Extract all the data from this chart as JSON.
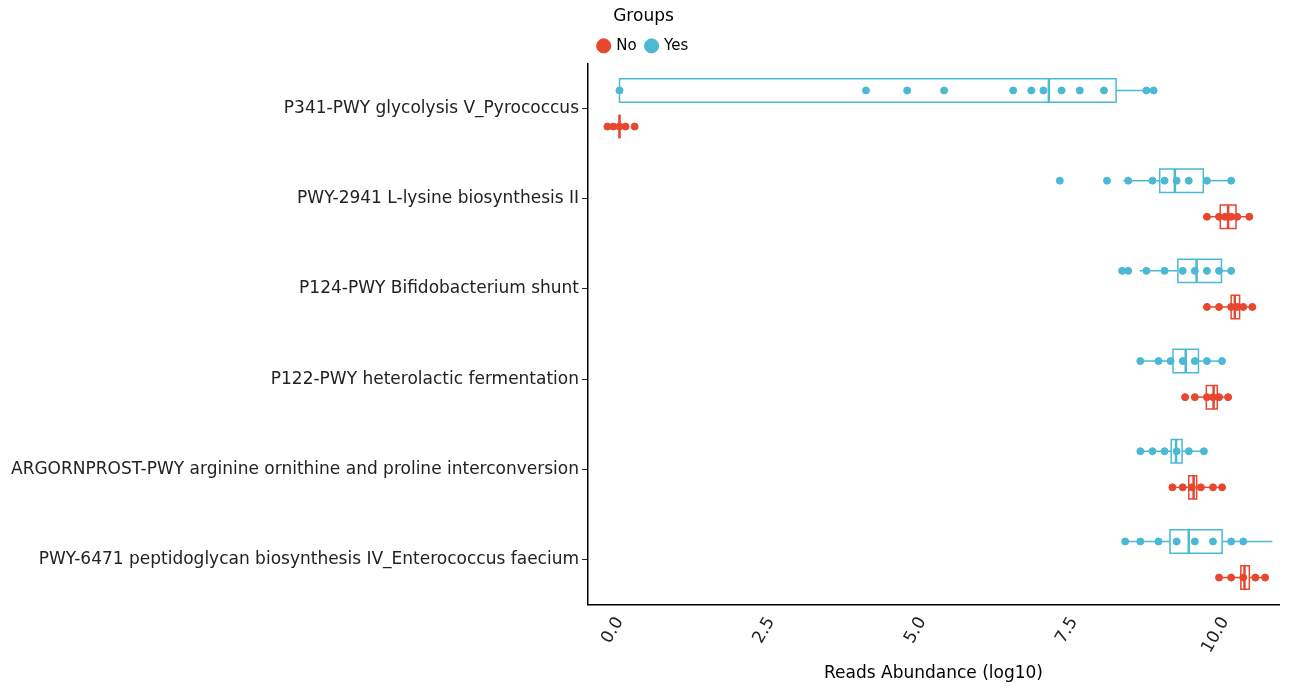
{
  "chart_data": {
    "type": "box",
    "orientation": "horizontal",
    "legend": "top",
    "legend_title": "Groups",
    "xlabel": "Reads Abundance (log10)",
    "marker": "circle",
    "categories": [
      "P341-PWY glycolysis V_Pyrococcus",
      "PWY-2941 L-lysine biosynthesis II",
      "P124-PWY Bifidobacterium shunt",
      "P122-PWY heterolactic fermentation",
      "ARGORNPROST-PWY arginine ornithine and proline interconversion",
      "PWY-6471 peptidoglycan biosynthesis IV_Enterococcus faecium"
    ],
    "xlim": [
      -0.52,
      10.89
    ],
    "xticks": [
      {
        "value": 0,
        "label": "0.0"
      },
      {
        "value": 2.5,
        "label": "2.5"
      },
      {
        "value": 5,
        "label": "5.0"
      },
      {
        "value": 7.5,
        "label": "7.5"
      },
      {
        "value": 10,
        "label": "10.0"
      }
    ],
    "series": [
      {
        "name": "No",
        "color": "#e8472f",
        "boxes": [
          {
            "low": 0,
            "q1": 0,
            "median": 0,
            "q3": 0,
            "high": 0
          },
          {
            "low": 9.69,
            "q1": 9.92,
            "median": 10.05,
            "q3": 10.18,
            "high": 10.44
          },
          {
            "low": 9.69,
            "q1": 10.1,
            "median": 10.16,
            "q3": 10.24,
            "high": 10.45
          },
          {
            "low": 9.51,
            "q1": 9.69,
            "median": 9.81,
            "q3": 9.87,
            "high": 10.05
          },
          {
            "low": 9.13,
            "q1": 9.4,
            "median": 9.48,
            "q3": 9.53,
            "high": 9.95
          },
          {
            "low": 9.92,
            "q1": 10.26,
            "median": 10.32,
            "q3": 10.4,
            "high": 10.66
          }
        ]
      },
      {
        "name": "Yes",
        "color": "#4bb9d3",
        "boxes": [
          {
            "low": 0,
            "q1": 0,
            "median": 7.09,
            "q3": 8.2,
            "high": 8.82
          },
          {
            "low": 8.32,
            "q1": 8.92,
            "median": 9.17,
            "q3": 9.64,
            "high": 10.16
          },
          {
            "low": 8.59,
            "q1": 9.22,
            "median": 9.53,
            "q3": 9.94,
            "high": 10.16
          },
          {
            "low": 8.59,
            "q1": 9.14,
            "median": 9.35,
            "q3": 9.56,
            "high": 9.97
          },
          {
            "low": 8.59,
            "q1": 9.11,
            "median": 9.19,
            "q3": 9.29,
            "high": 9.66
          },
          {
            "low": 8.32,
            "q1": 9.09,
            "median": 9.4,
            "q3": 9.95,
            "high": 10.78
          }
        ]
      },
      {
        "type": "scatter",
        "color": "#e8472f",
        "x": [
          "P341-PWY glycolysis V_Pyrococcus",
          "P341-PWY glycolysis V_Pyrococcus",
          "P341-PWY glycolysis V_Pyrococcus",
          "P341-PWY glycolysis V_Pyrococcus",
          "P341-PWY glycolysis V_Pyrococcus",
          "PWY-2941 L-lysine biosynthesis II",
          "PWY-2941 L-lysine biosynthesis II",
          "PWY-2941 L-lysine biosynthesis II",
          "PWY-2941 L-lysine biosynthesis II",
          "PWY-2941 L-lysine biosynthesis II",
          "PWY-2941 L-lysine biosynthesis II",
          "P124-PWY Bifidobacterium shunt",
          "P124-PWY Bifidobacterium shunt",
          "P124-PWY Bifidobacterium shunt",
          "P124-PWY Bifidobacterium shunt",
          "P124-PWY Bifidobacterium shunt",
          "P124-PWY Bifidobacterium shunt",
          "P122-PWY heterolactic fermentation",
          "P122-PWY heterolactic fermentation",
          "P122-PWY heterolactic fermentation",
          "P122-PWY heterolactic fermentation",
          "P122-PWY heterolactic fermentation",
          "P122-PWY heterolactic fermentation",
          "ARGORNPROST-PWY arginine ornithine and proline interconversion",
          "ARGORNPROST-PWY arginine ornithine and proline interconversion",
          "ARGORNPROST-PWY arginine ornithine and proline interconversion",
          "ARGORNPROST-PWY arginine ornithine and proline interconversion",
          "ARGORNPROST-PWY arginine ornithine and proline interconversion",
          "ARGORNPROST-PWY arginine ornithine and proline interconversion",
          "PWY-6471 peptidoglycan biosynthesis IV_Enterococcus faecium",
          "PWY-6471 peptidoglycan biosynthesis IV_Enterococcus faecium",
          "PWY-6471 peptidoglycan biosynthesis IV_Enterococcus faecium",
          "PWY-6471 peptidoglycan biosynthesis IV_Enterococcus faecium",
          "PWY-6471 peptidoglycan biosynthesis IV_Enterococcus faecium"
        ],
        "values": [
          -0.2,
          -0.1,
          0,
          0.1,
          0.25,
          9.7,
          9.9,
          10,
          10.1,
          10.2,
          10.4,
          9.7,
          9.9,
          10.1,
          10.2,
          10.3,
          10.45,
          9.34,
          9.5,
          9.7,
          9.8,
          9.9,
          10.05,
          9.13,
          9.3,
          9.45,
          9.6,
          9.8,
          9.95,
          9.9,
          10.1,
          10.3,
          10.5,
          10.66
        ]
      },
      {
        "type": "scatter",
        "color": "#4bb9d3",
        "x": [
          "P341-PWY glycolysis V_Pyrococcus",
          "P341-PWY glycolysis V_Pyrococcus",
          "P341-PWY glycolysis V_Pyrococcus",
          "P341-PWY glycolysis V_Pyrococcus",
          "P341-PWY glycolysis V_Pyrococcus",
          "P341-PWY glycolysis V_Pyrococcus",
          "P341-PWY glycolysis V_Pyrococcus",
          "P341-PWY glycolysis V_Pyrococcus",
          "P341-PWY glycolysis V_Pyrococcus",
          "P341-PWY glycolysis V_Pyrococcus",
          "P341-PWY glycolysis V_Pyrococcus",
          "P341-PWY glycolysis V_Pyrococcus",
          "PWY-2941 L-lysine biosynthesis II",
          "PWY-2941 L-lysine biosynthesis II",
          "PWY-2941 L-lysine biosynthesis II",
          "PWY-2941 L-lysine biosynthesis II",
          "PWY-2941 L-lysine biosynthesis II",
          "PWY-2941 L-lysine biosynthesis II",
          "PWY-2941 L-lysine biosynthesis II",
          "PWY-2941 L-lysine biosynthesis II",
          "PWY-2941 L-lysine biosynthesis II",
          "P124-PWY Bifidobacterium shunt",
          "P124-PWY Bifidobacterium shunt",
          "P124-PWY Bifidobacterium shunt",
          "P124-PWY Bifidobacterium shunt",
          "P124-PWY Bifidobacterium shunt",
          "P124-PWY Bifidobacterium shunt",
          "P124-PWY Bifidobacterium shunt",
          "P124-PWY Bifidobacterium shunt",
          "P124-PWY Bifidobacterium shunt",
          "P122-PWY heterolactic fermentation",
          "P122-PWY heterolactic fermentation",
          "P122-PWY heterolactic fermentation",
          "P122-PWY heterolactic fermentation",
          "P122-PWY heterolactic fermentation",
          "P122-PWY heterolactic fermentation",
          "P122-PWY heterolactic fermentation",
          "ARGORNPROST-PWY arginine ornithine and proline interconversion",
          "ARGORNPROST-PWY arginine ornithine and proline interconversion",
          "ARGORNPROST-PWY arginine ornithine and proline interconversion",
          "ARGORNPROST-PWY arginine ornithine and proline interconversion",
          "ARGORNPROST-PWY arginine ornithine and proline interconversion",
          "ARGORNPROST-PWY arginine ornithine and proline interconversion",
          "PWY-6471 peptidoglycan biosynthesis IV_Enterococcus faecium",
          "PWY-6471 peptidoglycan biosynthesis IV_Enterococcus faecium",
          "PWY-6471 peptidoglycan biosynthesis IV_Enterococcus faecium",
          "PWY-6471 peptidoglycan biosynthesis IV_Enterococcus faecium",
          "PWY-6471 peptidoglycan biosynthesis IV_Enterococcus faecium",
          "PWY-6471 peptidoglycan biosynthesis IV_Enterococcus faecium",
          "PWY-6471 peptidoglycan biosynthesis IV_Enterococcus faecium",
          "PWY-6471 peptidoglycan biosynthesis IV_Enterococcus faecium"
        ],
        "values": [
          0,
          4.07,
          4.75,
          5.36,
          6.5,
          6.8,
          7,
          7.3,
          7.6,
          8,
          8.7,
          8.82,
          7.27,
          8.05,
          8.4,
          8.8,
          9,
          9.2,
          9.4,
          9.7,
          10.1,
          8.3,
          8.4,
          8.7,
          9,
          9.3,
          9.5,
          9.7,
          9.9,
          10.1,
          8.6,
          8.9,
          9.1,
          9.3,
          9.5,
          9.7,
          9.95,
          8.6,
          8.8,
          9,
          9.2,
          9.4,
          9.65,
          8.35,
          8.6,
          8.9,
          9.2,
          9.5,
          9.8,
          10.1,
          10.3
        ]
      }
    ]
  }
}
